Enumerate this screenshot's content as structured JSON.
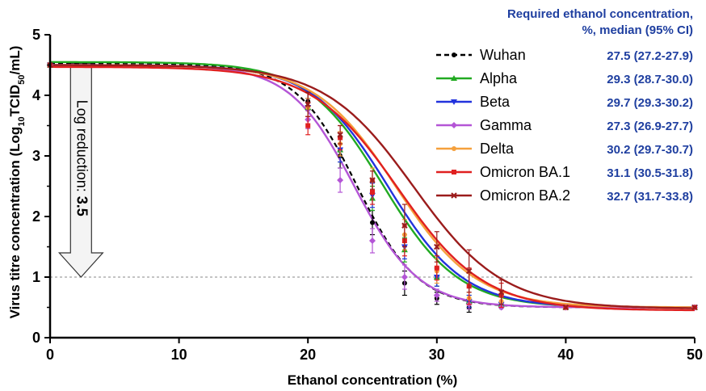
{
  "chart_data": {
    "type": "line",
    "xlabel": "Ethanol concentration (%)",
    "ylabel_parts": [
      "Virus titre concentration (Log",
      "10",
      "TCID",
      "50",
      "/mL)"
    ],
    "xlim": [
      0,
      50
    ],
    "ylim": [
      0,
      5
    ],
    "x_ticks": [
      "0",
      "10",
      "20",
      "30",
      "40",
      "50"
    ],
    "y_ticks": [
      "0",
      "1",
      "2",
      "3",
      "4",
      "5"
    ],
    "grid": false,
    "legend_position": "top-right",
    "legend_header": [
      "Required ethanol concentration,",
      "%, median (95% CI)"
    ],
    "reference_line": {
      "y": 1,
      "style": "dashed"
    },
    "annotation": {
      "text": "Log reduction: ",
      "value": "3.5",
      "from_y": 4.5,
      "to_y": 1.0,
      "x": 2.4
    },
    "value_color": "#1f3fa0",
    "x": [
      0,
      20,
      22.5,
      25,
      27.5,
      30,
      32.5,
      35,
      40,
      50
    ],
    "series": [
      {
        "name": "Wuhan",
        "color": "#000000",
        "dashed": true,
        "marker": "circle",
        "median": "27.5 (27.2-27.9)",
        "ec50": 23.8,
        "slope": 0.42,
        "top": 4.52,
        "bottom": 0.5,
        "values": [
          4.5,
          3.9,
          3.0,
          1.9,
          0.9,
          0.65,
          0.5,
          0.5,
          0.5,
          0.5
        ],
        "err": [
          0,
          0.15,
          0.2,
          0.2,
          0.2,
          0.1,
          0.08,
          0,
          0,
          0
        ]
      },
      {
        "name": "Alpha",
        "color": "#22aa22",
        "dashed": false,
        "marker": "triangle",
        "median": "29.3 (28.7-30.0)",
        "ec50": 25.8,
        "slope": 0.34,
        "top": 4.55,
        "bottom": 0.5,
        "values": [
          4.5,
          3.8,
          3.1,
          2.3,
          1.45,
          1.0,
          0.6,
          0.55,
          0.5,
          0.5
        ],
        "err": [
          0,
          0.15,
          0.2,
          0.2,
          0.2,
          0.15,
          0.1,
          0,
          0,
          0
        ]
      },
      {
        "name": "Beta",
        "color": "#2233dd",
        "dashed": false,
        "marker": "triangle-down",
        "median": "29.7 (29.3-30.2)",
        "ec50": 26.2,
        "slope": 0.34,
        "top": 4.5,
        "bottom": 0.5,
        "values": [
          4.5,
          3.8,
          3.1,
          2.35,
          1.5,
          1.0,
          0.6,
          0.55,
          0.5,
          0.5
        ],
        "err": [
          0,
          0.15,
          0.2,
          0.2,
          0.2,
          0.15,
          0.1,
          0,
          0,
          0
        ]
      },
      {
        "name": "Gamma",
        "color": "#b455d6",
        "dashed": false,
        "marker": "diamond",
        "median": "27.3 (26.9-27.7)",
        "ec50": 23.6,
        "slope": 0.4,
        "top": 4.5,
        "bottom": 0.5,
        "values": [
          4.5,
          3.6,
          2.6,
          1.6,
          1.0,
          0.7,
          0.55,
          0.5,
          0.5,
          0.5
        ],
        "err": [
          0,
          0.15,
          0.2,
          0.2,
          0.2,
          0.1,
          0.08,
          0,
          0,
          0
        ]
      },
      {
        "name": "Delta",
        "color": "#f5a03c",
        "dashed": false,
        "marker": "circle",
        "median": "30.2 (29.7-30.7)",
        "ec50": 26.8,
        "slope": 0.32,
        "top": 4.5,
        "bottom": 0.5,
        "values": [
          4.5,
          3.8,
          3.2,
          2.6,
          1.7,
          1.1,
          0.65,
          0.6,
          0.5,
          0.5
        ],
        "err": [
          0,
          0.15,
          0.2,
          0.2,
          0.25,
          0.2,
          0.1,
          0,
          0,
          0
        ]
      },
      {
        "name": "Omicron BA.1",
        "color": "#e02020",
        "dashed": false,
        "marker": "square",
        "median": "31.1 (30.5-31.8)",
        "ec50": 27.0,
        "slope": 0.3,
        "top": 4.47,
        "bottom": 0.45,
        "values": [
          4.5,
          3.5,
          3.3,
          2.4,
          1.6,
          1.15,
          0.85,
          0.7,
          0.5,
          0.5
        ],
        "err": [
          0,
          0.15,
          0.2,
          0.2,
          0.25,
          0.2,
          0.3,
          0.2,
          0,
          0
        ]
      },
      {
        "name": "Omicron BA.2",
        "color": "#9b1c1c",
        "dashed": false,
        "marker": "x",
        "median": "32.7 (31.7-33.8)",
        "ec50": 28.2,
        "slope": 0.29,
        "top": 4.5,
        "bottom": 0.48,
        "values": [
          4.5,
          3.85,
          3.35,
          2.6,
          1.85,
          1.5,
          1.1,
          0.75,
          0.5,
          0.5
        ],
        "err": [
          0,
          0.2,
          0.15,
          0.15,
          0.35,
          0.25,
          0.35,
          0.2,
          0,
          0
        ]
      }
    ]
  }
}
